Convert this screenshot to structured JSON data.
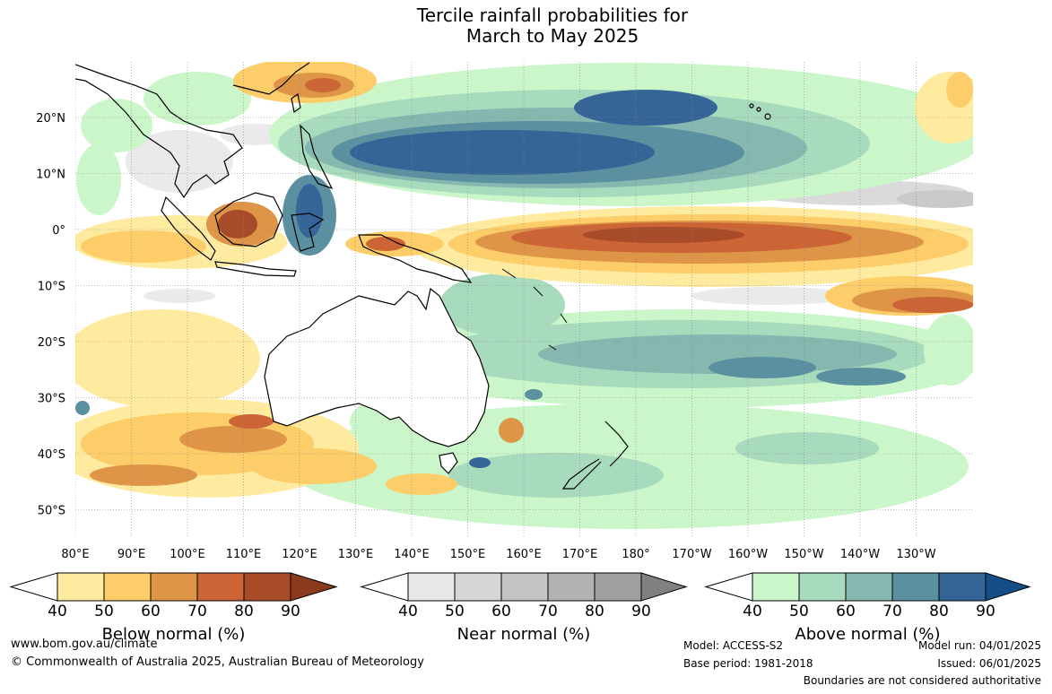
{
  "title": {
    "line1": "Tercile rainfall probabilities for",
    "line2": "March to May 2025"
  },
  "map": {
    "lat_labels": [
      "20°N",
      "10°N",
      "0°",
      "10°S",
      "20°S",
      "30°S",
      "40°S",
      "50°S"
    ],
    "lon_labels": [
      "80°E",
      "90°E",
      "100°E",
      "110°E",
      "120°E",
      "130°E",
      "140°E",
      "150°E",
      "160°E",
      "170°E",
      "180°",
      "170°W",
      "160°W",
      "150°W",
      "140°W",
      "130°W"
    ],
    "ocean_color": "#ffffff",
    "land_outline_color": "#000000"
  },
  "colorbars": [
    {
      "title": "Below normal (%)",
      "ticks": [
        "40",
        "50",
        "60",
        "70",
        "80",
        "90"
      ],
      "colors": [
        "#ffeba0",
        "#fdcd69",
        "#df9548",
        "#cc6536",
        "#a84b29",
        "#8b3a1d"
      ]
    },
    {
      "title": "Near normal (%)",
      "ticks": [
        "40",
        "50",
        "60",
        "70",
        "80",
        "90"
      ],
      "colors": [
        "#e8e8e8",
        "#d6d6d6",
        "#c4c4c4",
        "#b2b2b2",
        "#a0a0a0",
        "#808080"
      ]
    },
    {
      "title": "Above normal (%)",
      "ticks": [
        "40",
        "50",
        "60",
        "70",
        "80",
        "90"
      ],
      "colors": [
        "#caf6c9",
        "#a8dbbd",
        "#86b8b0",
        "#5a90a0",
        "#346596",
        "#134e86"
      ]
    }
  ],
  "footer": {
    "website": "www.bom.gov.au/climate",
    "copyright": "© Commonwealth of Australia 2025, Australian Bureau of Meteorology",
    "model": "Model: ACCESS-S2",
    "base_period": "Base period: 1981-2018",
    "model_run": "Model run: 04/01/2025",
    "issued": "Issued: 06/01/2025",
    "disclaimer": "Boundaries are not considered authoritative"
  }
}
